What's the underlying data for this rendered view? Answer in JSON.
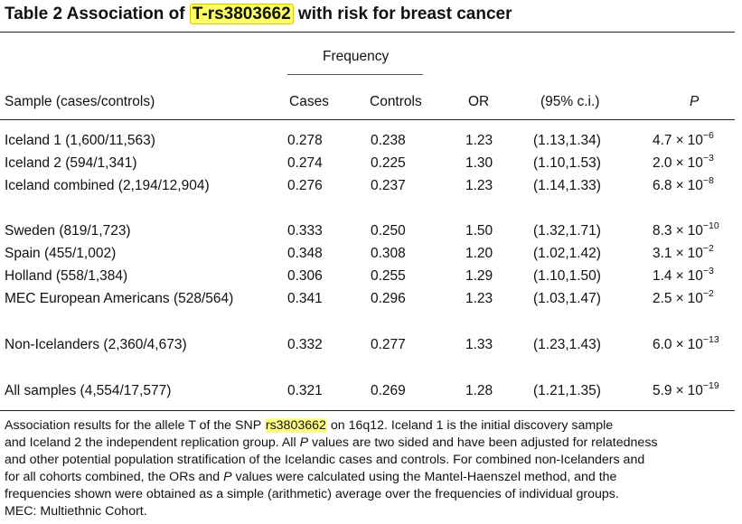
{
  "title": {
    "prefix": "Table 2  Association of ",
    "highlight": "T-rs3803662",
    "suffix": " with risk for breast cancer"
  },
  "header": {
    "frequency": "Frequency",
    "sample": "Sample (cases/controls)",
    "cases": "Cases",
    "controls": "Controls",
    "or": "OR",
    "ci": "(95% c.i.)",
    "p": "P"
  },
  "rows": [
    {
      "sample": "Iceland 1 (1,600/11,563)",
      "cases": "0.278",
      "controls": "0.238",
      "or": "1.23",
      "ci": "(1.13,1.34)",
      "p_mant": "4.7",
      "p_exp": "−6"
    },
    {
      "sample": "Iceland 2 (594/1,341)",
      "cases": "0.274",
      "controls": "0.225",
      "or": "1.30",
      "ci": "(1.10,1.53)",
      "p_mant": "2.0",
      "p_exp": "−3"
    },
    {
      "sample": "Iceland combined (2,194/12,904)",
      "cases": "0.276",
      "controls": "0.237",
      "or": "1.23",
      "ci": "(1.14,1.33)",
      "p_mant": "6.8",
      "p_exp": "−8"
    },
    {
      "sample": "Sweden (819/1,723)",
      "cases": "0.333",
      "controls": "0.250",
      "or": "1.50",
      "ci": "(1.32,1.71)",
      "p_mant": "8.3",
      "p_exp": "−10"
    },
    {
      "sample": "Spain (455/1,002)",
      "cases": "0.348",
      "controls": "0.308",
      "or": "1.20",
      "ci": "(1.02,1.42)",
      "p_mant": "3.1",
      "p_exp": "−2"
    },
    {
      "sample": "Holland (558/1,384)",
      "cases": "0.306",
      "controls": "0.255",
      "or": "1.29",
      "ci": "(1.10,1.50)",
      "p_mant": "1.4",
      "p_exp": "−3"
    },
    {
      "sample": "MEC European Americans (528/564)",
      "cases": "0.341",
      "controls": "0.296",
      "or": "1.23",
      "ci": "(1.03,1.47)",
      "p_mant": "2.5",
      "p_exp": "−2"
    },
    {
      "sample": "Non-Icelanders (2,360/4,673)",
      "cases": "0.332",
      "controls": "0.277",
      "or": "1.33",
      "ci": "(1.23,1.43)",
      "p_mant": "6.0",
      "p_exp": "−13"
    },
    {
      "sample": "All samples (4,554/17,577)",
      "cases": "0.321",
      "controls": "0.269",
      "or": "1.28",
      "ci": "(1.21,1.35)",
      "p_mant": "5.9",
      "p_exp": "−19"
    }
  ],
  "p_base": "10",
  "times": "×",
  "footnote": {
    "l1a": "Association results for the allele T of the SNP ",
    "l1hl": "rs3803662",
    "l1b": " on 16q12. Iceland 1 is the initial discovery sample",
    "l2a": "and Iceland 2 the independent replication group. All ",
    "l2p": "P",
    "l2b": " values are two sided and have been adjusted for relatedness",
    "l3": "and other potential population stratification of the Icelandic cases and controls. For combined non-Icelanders and",
    "l4a": "for all cohorts combined, the ORs and ",
    "l4p": "P",
    "l4b": " values were calculated using the Mantel-Haenszel method, and the",
    "l5": "frequencies shown were obtained as a simple (arithmetic) average over the frequencies of individual groups.",
    "l6": "MEC: Multiethnic Cohort."
  }
}
